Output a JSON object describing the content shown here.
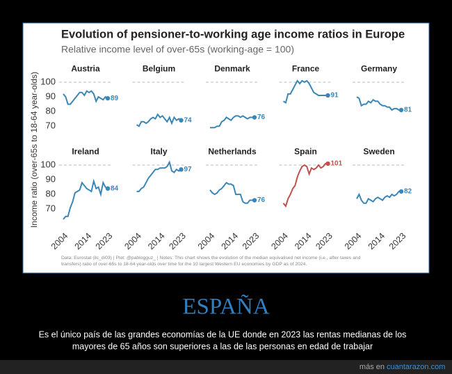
{
  "title": "Evolution of pensioner-to-working age income ratios in Europe",
  "subtitle": "Relative income level of over-65s (working-age = 100)",
  "y_label": "Income ratio (over-65s to 18-64 year-olds)",
  "axes": {
    "x": [
      2004,
      2005,
      2006,
      2007,
      2008,
      2009,
      2010,
      2011,
      2012,
      2013,
      2014,
      2015,
      2016,
      2017,
      2018,
      2019,
      2020,
      2021,
      2022,
      2023
    ],
    "xlim": [
      2004,
      2023
    ],
    "xticks": [
      2004,
      2014,
      2023
    ],
    "ylim": [
      62,
      105
    ],
    "yticks": [
      70,
      80,
      90,
      100
    ],
    "reference_line": 100
  },
  "chart_data": [
    {
      "type": "line",
      "title": "Austria",
      "color": "#3a86b7",
      "values": [
        92,
        90,
        85,
        85,
        87,
        89,
        91,
        93,
        93,
        91,
        94,
        93,
        94,
        92,
        87,
        90,
        89,
        88,
        90,
        89
      ]
    },
    {
      "type": "line",
      "title": "Belgium",
      "color": "#3a86b7",
      "values": [
        71,
        70,
        73,
        73,
        72,
        73,
        75,
        76,
        75,
        78,
        76,
        77,
        75,
        73,
        76,
        72,
        76,
        74,
        75,
        74
      ]
    },
    {
      "type": "line",
      "title": "Denmark",
      "color": "#3a86b7",
      "values": [
        69,
        69,
        69,
        70,
        70,
        73,
        74,
        76,
        75,
        74,
        76,
        77,
        77,
        76,
        77,
        76,
        75,
        76,
        76,
        76
      ]
    },
    {
      "type": "line",
      "title": "France",
      "color": "#3a86b7",
      "values": [
        87,
        86,
        92,
        92,
        95,
        98,
        101,
        99,
        101,
        100,
        101,
        99,
        96,
        93,
        92,
        91,
        91,
        91,
        91,
        91
      ]
    },
    {
      "type": "line",
      "title": "Germany",
      "color": "#3a86b7",
      "values": [
        90,
        89,
        84,
        85,
        85,
        87,
        86,
        88,
        87,
        87,
        85,
        84,
        84,
        83,
        83,
        81,
        82,
        82,
        81,
        81
      ]
    },
    {
      "type": "line",
      "title": "Ireland",
      "color": "#3a86b7",
      "values": [
        63,
        65,
        65,
        71,
        75,
        81,
        82,
        83,
        88,
        86,
        84,
        83,
        82,
        89,
        84,
        85,
        80,
        88,
        85,
        84
      ]
    },
    {
      "type": "line",
      "title": "Italy",
      "color": "#3a86b7",
      "values": [
        82,
        82,
        84,
        85,
        88,
        91,
        93,
        95,
        97,
        97,
        98,
        98,
        98,
        99,
        102,
        96,
        95,
        97,
        96,
        97
      ]
    },
    {
      "type": "line",
      "title": "Netherlands",
      "color": "#3a86b7",
      "values": [
        83,
        81,
        80,
        81,
        83,
        84,
        86,
        88,
        87,
        87,
        86,
        80,
        80,
        80,
        75,
        74,
        74,
        76,
        76,
        76
      ]
    },
    {
      "type": "line",
      "title": "Spain",
      "color": "#c0504d",
      "values": [
        74,
        72,
        77,
        80,
        84,
        86,
        92,
        96,
        99,
        100,
        99,
        94,
        98,
        97,
        98,
        100,
        98,
        99,
        101,
        101
      ]
    },
    {
      "type": "line",
      "title": "Sweden",
      "color": "#3a86b7",
      "values": [
        77,
        80,
        76,
        74,
        74,
        77,
        76,
        75,
        77,
        78,
        77,
        76,
        78,
        79,
        78,
        80,
        79,
        80,
        82,
        82
      ]
    }
  ],
  "note": [
    "Data: Eurostat (ilc_di03) | Plot: @pablogguz_ | Notes: This chart shows the evolution of the median equivalised net income (i.e., after taxes and",
    "transfers) ratio of over-65s to 18-64 year-olds over time for the 10 largest Western EU economies by GDP as of 2024."
  ],
  "caption": {
    "heading": "ESPAÑA",
    "lines": [
      "Es el único país de las grandes economías de la UE donde en 2023 las rentas medianas de los",
      "mayores de 65 años son superiores a las de las personas en edad de trabajar"
    ]
  },
  "footer": {
    "prefix": "más en",
    "site": "cuantarazon.com"
  }
}
